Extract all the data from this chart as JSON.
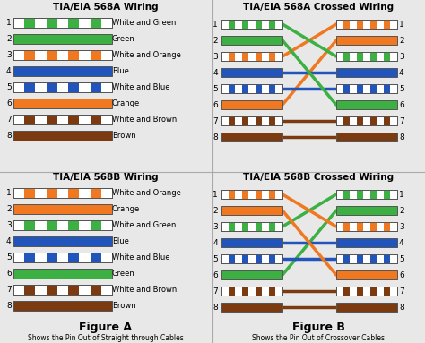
{
  "bg_color": "#e8e8e8",
  "title_568A": "TIA/EIA 568A Wiring",
  "title_568B": "TIA/EIA 568B Wiring",
  "title_568A_cross": "TIA/EIA 568A Crossed Wiring",
  "title_568B_cross": "TIA/EIA 568B Crossed Wiring",
  "fig_A": "Figure A",
  "fig_B": "Figure B",
  "caption_A": "Shows the Pin Out of Straight through Cables",
  "caption_B": "Shows the Pin Out of Crossover Cables",
  "568A_wires": [
    {
      "pin": 1,
      "label": "White and Green",
      "type": "striped",
      "color": "#3cb043"
    },
    {
      "pin": 2,
      "label": "Green",
      "type": "solid",
      "color": "#3cb043"
    },
    {
      "pin": 3,
      "label": "White and Orange",
      "type": "striped",
      "color": "#f07820"
    },
    {
      "pin": 4,
      "label": "Blue",
      "type": "solid",
      "color": "#2255bb"
    },
    {
      "pin": 5,
      "label": "White and Blue",
      "type": "striped",
      "color": "#2255bb"
    },
    {
      "pin": 6,
      "label": "Orange",
      "type": "solid",
      "color": "#f07820"
    },
    {
      "pin": 7,
      "label": "White and Brown",
      "type": "striped",
      "color": "#7b3a10"
    },
    {
      "pin": 8,
      "label": "Brown",
      "type": "solid",
      "color": "#7b3a10"
    }
  ],
  "568B_wires": [
    {
      "pin": 1,
      "label": "White and Orange",
      "type": "striped",
      "color": "#f07820"
    },
    {
      "pin": 2,
      "label": "Orange",
      "type": "solid",
      "color": "#f07820"
    },
    {
      "pin": 3,
      "label": "White and Green",
      "type": "striped",
      "color": "#3cb043"
    },
    {
      "pin": 4,
      "label": "Blue",
      "type": "solid",
      "color": "#2255bb"
    },
    {
      "pin": 5,
      "label": "White and Blue",
      "type": "striped",
      "color": "#2255bb"
    },
    {
      "pin": 6,
      "label": "Green",
      "type": "solid",
      "color": "#3cb043"
    },
    {
      "pin": 7,
      "label": "White and Brown",
      "type": "striped",
      "color": "#7b3a10"
    },
    {
      "pin": 8,
      "label": "Brown",
      "type": "solid",
      "color": "#7b3a10"
    }
  ],
  "cross_A_right_order": [
    3,
    6,
    1,
    4,
    5,
    2,
    7,
    8
  ],
  "cross_B_right_order": [
    3,
    6,
    1,
    4,
    5,
    2,
    7,
    8
  ],
  "green_color": "#3cb043",
  "orange_color": "#f07820",
  "blue_color": "#2255bb",
  "brown_color": "#7b3a10",
  "darkred_color": "#8b0000"
}
